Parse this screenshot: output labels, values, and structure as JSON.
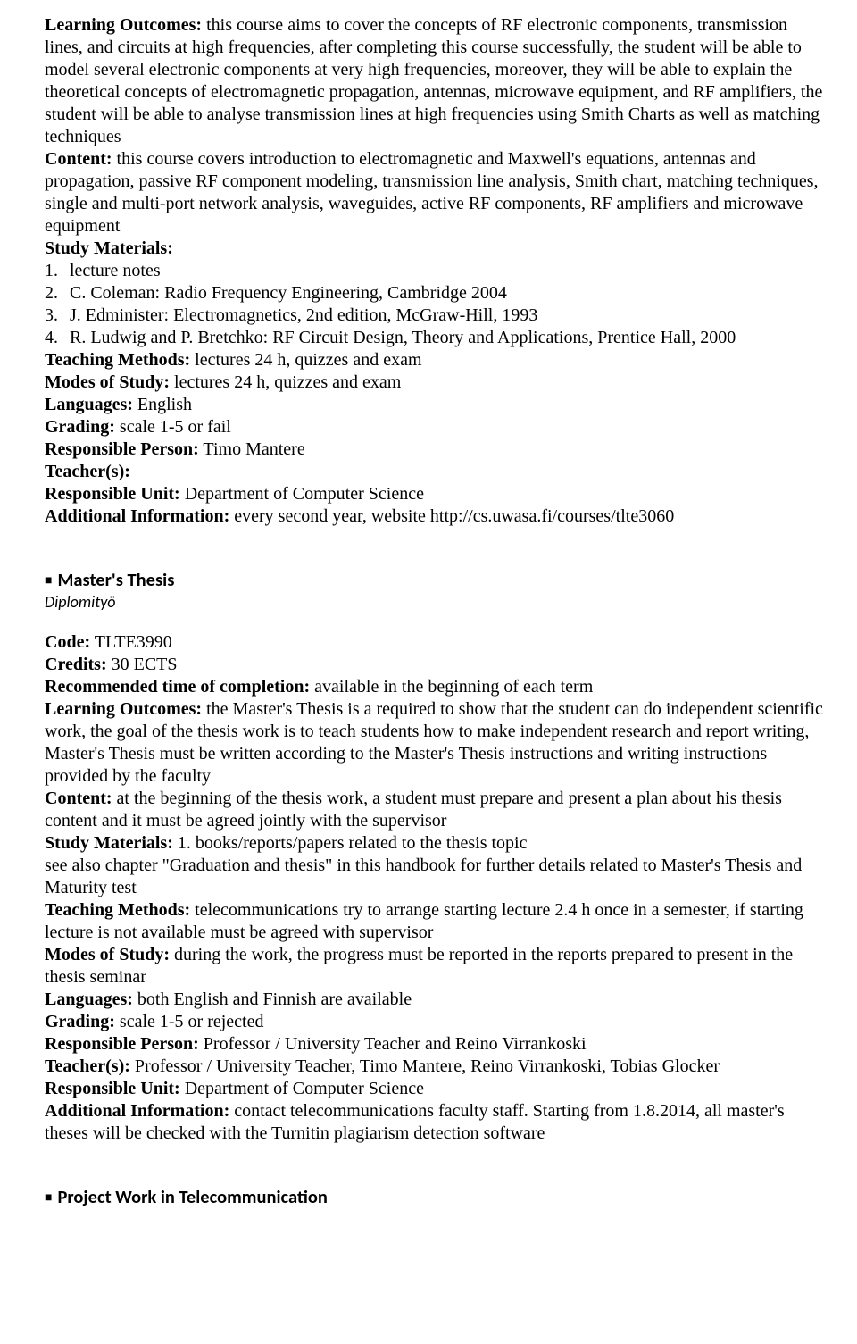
{
  "course1": {
    "labels": {
      "learning_outcomes": "Learning Outcomes:",
      "content": "Content:",
      "study_materials": "Study Materials:",
      "teaching_methods": "Teaching Methods:",
      "modes_of_study": "Modes of Study:",
      "languages": "Languages:",
      "grading": "Grading:",
      "responsible_person": "Responsible Person:",
      "teachers": "Teacher(s):",
      "responsible_unit": "Responsible Unit:",
      "additional_info": "Additional Information:"
    },
    "learning_outcomes": " this course aims to cover the concepts of RF electronic components, transmission lines, and circuits at high frequencies, after completing this course successfully, the student will be able to model several electronic components at very high frequencies, moreover, they will be able to explain the theoretical concepts of electromagnetic propagation, antennas, microwave equipment, and RF amplifiers, the student will be able to analyse transmission lines at high frequencies using Smith Charts as well as matching techniques",
    "content": " this course covers introduction to electromagnetic and Maxwell's equations, antennas and propagation, passive RF component modeling, transmission line analysis, Smith chart, matching techniques, single and multi-port network analysis, waveguides, active RF components, RF amplifiers and microwave equipment",
    "materials": [
      "lecture notes",
      "C. Coleman: Radio Frequency Engineering, Cambridge 2004",
      "J. Edminister: Electromagnetics, 2nd edition, McGraw-Hill, 1993",
      "R. Ludwig and P. Bretchko: RF Circuit Design, Theory and Applications, Prentice Hall, 2000"
    ],
    "teaching_methods": " lectures 24 h, quizzes and exam",
    "modes_of_study": " lectures 24 h, quizzes and exam",
    "languages": " English",
    "grading": " scale 1-5 or fail",
    "responsible_person": " Timo Mantere",
    "teachers": "",
    "responsible_unit": " Department of Computer Science",
    "additional_info": " every second year, website http://cs.uwasa.fi/courses/tlte3060"
  },
  "course2": {
    "header": "Master's Thesis",
    "subtitle": "Diplomityö",
    "labels": {
      "code": "Code:",
      "credits": "Credits:",
      "recommended_time": "Recommended time of completion:",
      "learning_outcomes": "Learning Outcomes:",
      "content": "Content:",
      "study_materials": "Study Materials:",
      "teaching_methods": "Teaching Methods:",
      "modes_of_study": "Modes of Study:",
      "languages": "Languages:",
      "grading": "Grading:",
      "responsible_person": "Responsible Person:",
      "teachers": "Teacher(s):",
      "responsible_unit": "Responsible Unit:",
      "additional_info": "Additional Information:"
    },
    "code": " TLTE3990",
    "credits": " 30 ECTS",
    "recommended_time": " available in the beginning of each term",
    "learning_outcomes": " the Master's Thesis is a required to show that the student can do independent scientific work, the goal of the thesis work is to teach students how to make independent research and report writing, Master's Thesis must be written according to the Master's Thesis instructions and writing instructions provided by the faculty",
    "content": " at the beginning of the thesis work, a student must prepare and present a plan about his thesis content and it must be agreed jointly with the supervisor",
    "study_materials_line": " 1. books/reports/papers related to the thesis topic",
    "study_materials_extra": "see also chapter \"Graduation and thesis\" in this handbook for further details related to Master's Thesis and Maturity test",
    "teaching_methods": " telecommunications try to arrange starting lecture 2.4 h once in a semester, if starting lecture is not available must be agreed with supervisor",
    "modes_of_study": " during the work, the progress must be reported in the reports prepared to present in the thesis seminar",
    "languages": " both English and Finnish are available",
    "grading": " scale 1-5 or rejected",
    "responsible_person": " Professor / University Teacher and Reino Virrankoski",
    "teachers": " Professor / University Teacher, Timo Mantere, Reino Virrankoski, Tobias Glocker",
    "responsible_unit": " Department of Computer Science",
    "additional_info": " contact telecommunications faculty staff. Starting from 1.8.2014, all master's theses will be checked with the Turnitin plagiarism detection software"
  },
  "course3": {
    "header": "Project Work in Telecommunication"
  }
}
